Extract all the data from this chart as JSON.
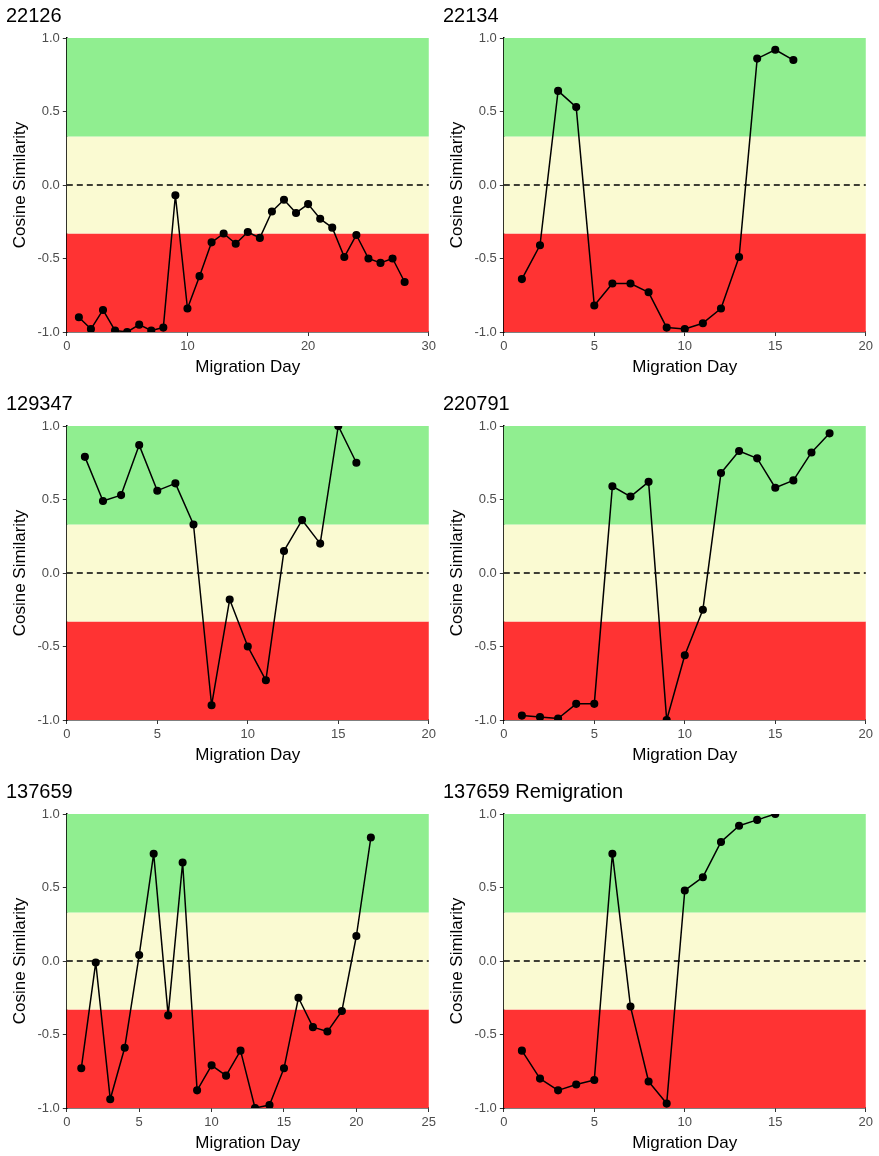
{
  "chart_data": [
    {
      "type": "line",
      "title": "22126",
      "xlabel": "Migration Day",
      "ylabel": "Cosine Similarity",
      "xlim": [
        0,
        30
      ],
      "xticks": [
        0,
        10,
        20,
        30
      ],
      "ylim": [
        -1,
        1
      ],
      "yticks": [
        {
          "value": -1,
          "label": "-1.0"
        },
        {
          "value": -0.5,
          "label": "-0.5"
        },
        {
          "value": 0,
          "label": "0.0"
        },
        {
          "value": 0.5,
          "label": "0.5"
        },
        {
          "value": 1,
          "label": "1.0"
        }
      ],
      "grid": false,
      "legend": false,
      "marker": "circle",
      "line_style": "solid",
      "x": [
        1,
        2,
        3,
        4,
        5,
        6,
        7,
        8,
        9,
        10,
        11,
        12,
        13,
        14,
        15,
        16,
        17,
        18,
        19,
        20,
        21,
        22,
        23,
        24,
        25,
        26,
        27,
        28
      ],
      "series": [
        {
          "color": "#000000",
          "values": [
            -0.9,
            -0.98,
            -0.85,
            -0.99,
            -1.0,
            -0.95,
            -0.99,
            -0.97,
            -0.07,
            -0.84,
            -0.62,
            -0.39,
            -0.33,
            -0.4,
            -0.32,
            -0.36,
            -0.18,
            -0.1,
            -0.19,
            -0.13,
            -0.23,
            -0.29,
            -0.49,
            -0.34,
            -0.5,
            -0.53,
            -0.5,
            -0.66
          ]
        }
      ],
      "bands": [
        {
          "axis": "y",
          "from": -1,
          "to": -0.33,
          "color": "#ff3333"
        },
        {
          "axis": "y",
          "from": -0.33,
          "to": 0.33,
          "color": "#fafad2"
        },
        {
          "axis": "y",
          "from": 0.33,
          "to": 1,
          "color": "#90ee90"
        }
      ],
      "ref_lines": [
        {
          "axis": "y",
          "value": 0,
          "color": "#000000",
          "line_style": "dashed"
        }
      ]
    },
    {
      "type": "line",
      "title": "22134",
      "xlabel": "Migration Day",
      "ylabel": "Cosine Similarity",
      "xlim": [
        0,
        20
      ],
      "xticks": [
        0,
        5,
        10,
        15,
        20
      ],
      "ylim": [
        -1,
        1
      ],
      "yticks": [
        {
          "value": -1,
          "label": "-1.0"
        },
        {
          "value": -0.5,
          "label": "-0.5"
        },
        {
          "value": 0,
          "label": "0.0"
        },
        {
          "value": 0.5,
          "label": "0.5"
        },
        {
          "value": 1,
          "label": "1.0"
        }
      ],
      "grid": false,
      "legend": false,
      "marker": "circle",
      "line_style": "solid",
      "x": [
        1,
        2,
        3,
        4,
        5,
        6,
        7,
        8,
        9,
        10,
        11,
        12,
        13,
        14,
        15,
        16
      ],
      "series": [
        {
          "color": "#000000",
          "values": [
            -0.64,
            -0.41,
            0.64,
            0.53,
            -0.82,
            -0.67,
            -0.67,
            -0.73,
            -0.97,
            -0.98,
            -0.94,
            -0.84,
            -0.49,
            0.86,
            0.92,
            0.85
          ]
        }
      ],
      "bands": [
        {
          "axis": "y",
          "from": -1,
          "to": -0.33,
          "color": "#ff3333"
        },
        {
          "axis": "y",
          "from": -0.33,
          "to": 0.33,
          "color": "#fafad2"
        },
        {
          "axis": "y",
          "from": 0.33,
          "to": 1,
          "color": "#90ee90"
        }
      ],
      "ref_lines": [
        {
          "axis": "y",
          "value": 0,
          "color": "#000000",
          "line_style": "dashed"
        }
      ]
    },
    {
      "type": "line",
      "title": "129347",
      "xlabel": "Migration Day",
      "ylabel": "Cosine Similarity",
      "xlim": [
        0,
        20
      ],
      "xticks": [
        0,
        5,
        10,
        15,
        20
      ],
      "ylim": [
        -1,
        1
      ],
      "yticks": [
        {
          "value": -1,
          "label": "-1.0"
        },
        {
          "value": -0.5,
          "label": "-0.5"
        },
        {
          "value": 0,
          "label": "0.0"
        },
        {
          "value": 0.5,
          "label": "0.5"
        },
        {
          "value": 1,
          "label": "1.0"
        }
      ],
      "grid": false,
      "legend": false,
      "marker": "circle",
      "line_style": "solid",
      "x": [
        1,
        2,
        3,
        4,
        5,
        6,
        7,
        8,
        9,
        10,
        11,
        12,
        13,
        14,
        15,
        16
      ],
      "series": [
        {
          "color": "#000000",
          "values": [
            0.79,
            0.49,
            0.53,
            0.87,
            0.56,
            0.61,
            0.33,
            -0.9,
            -0.18,
            -0.5,
            -0.73,
            0.15,
            0.36,
            0.2,
            1.0,
            0.75
          ]
        }
      ],
      "bands": [
        {
          "axis": "y",
          "from": -1,
          "to": -0.33,
          "color": "#ff3333"
        },
        {
          "axis": "y",
          "from": -0.33,
          "to": 0.33,
          "color": "#fafad2"
        },
        {
          "axis": "y",
          "from": 0.33,
          "to": 1,
          "color": "#90ee90"
        }
      ],
      "ref_lines": [
        {
          "axis": "y",
          "value": 0,
          "color": "#000000",
          "line_style": "dashed"
        }
      ]
    },
    {
      "type": "line",
      "title": "220791",
      "xlabel": "Migration Day",
      "ylabel": "Cosine Similarity",
      "xlim": [
        0,
        20
      ],
      "xticks": [
        0,
        5,
        10,
        15,
        20
      ],
      "ylim": [
        -1,
        1
      ],
      "yticks": [
        {
          "value": -1,
          "label": "-1.0"
        },
        {
          "value": -0.5,
          "label": "-0.5"
        },
        {
          "value": 0,
          "label": "0.0"
        },
        {
          "value": 0.5,
          "label": "0.5"
        },
        {
          "value": 1,
          "label": "1.0"
        }
      ],
      "grid": false,
      "legend": false,
      "marker": "circle",
      "line_style": "solid",
      "x": [
        1,
        2,
        3,
        4,
        5,
        6,
        7,
        8,
        9,
        10,
        11,
        12,
        13,
        14,
        15,
        16,
        17,
        18
      ],
      "series": [
        {
          "color": "#000000",
          "values": [
            -0.97,
            -0.98,
            -0.99,
            -0.89,
            -0.89,
            0.59,
            0.52,
            0.62,
            -1.0,
            -0.56,
            -0.25,
            0.68,
            0.83,
            0.78,
            0.58,
            0.63,
            0.82,
            0.95
          ]
        }
      ],
      "bands": [
        {
          "axis": "y",
          "from": -1,
          "to": -0.33,
          "color": "#ff3333"
        },
        {
          "axis": "y",
          "from": -0.33,
          "to": 0.33,
          "color": "#fafad2"
        },
        {
          "axis": "y",
          "from": 0.33,
          "to": 1,
          "color": "#90ee90"
        }
      ],
      "ref_lines": [
        {
          "axis": "y",
          "value": 0,
          "color": "#000000",
          "line_style": "dashed"
        }
      ]
    },
    {
      "type": "line",
      "title": "137659",
      "xlabel": "Migration Day",
      "ylabel": "Cosine Similarity",
      "xlim": [
        0,
        25
      ],
      "xticks": [
        0,
        5,
        10,
        15,
        20,
        25
      ],
      "ylim": [
        -1,
        1
      ],
      "yticks": [
        {
          "value": -1,
          "label": "-1.0"
        },
        {
          "value": -0.5,
          "label": "-0.5"
        },
        {
          "value": 0,
          "label": "0.0"
        },
        {
          "value": 0.5,
          "label": "0.5"
        },
        {
          "value": 1,
          "label": "1.0"
        }
      ],
      "grid": false,
      "legend": false,
      "marker": "circle",
      "line_style": "solid",
      "x": [
        1,
        2,
        3,
        4,
        5,
        6,
        7,
        8,
        9,
        10,
        11,
        12,
        13,
        14,
        15,
        16,
        17,
        18,
        19,
        20,
        21
      ],
      "series": [
        {
          "color": "#000000",
          "values": [
            -0.73,
            -0.01,
            -0.94,
            -0.59,
            0.04,
            0.73,
            -0.37,
            0.67,
            -0.88,
            -0.71,
            -0.78,
            -0.61,
            -1.0,
            -0.98,
            -0.73,
            -0.25,
            -0.45,
            -0.48,
            -0.34,
            0.17,
            0.84
          ]
        }
      ],
      "bands": [
        {
          "axis": "y",
          "from": -1,
          "to": -0.33,
          "color": "#ff3333"
        },
        {
          "axis": "y",
          "from": -0.33,
          "to": 0.33,
          "color": "#fafad2"
        },
        {
          "axis": "y",
          "from": 0.33,
          "to": 1,
          "color": "#90ee90"
        }
      ],
      "ref_lines": [
        {
          "axis": "y",
          "value": 0,
          "color": "#000000",
          "line_style": "dashed"
        }
      ]
    },
    {
      "type": "line",
      "title": "137659 Remigration",
      "xlabel": "Migration Day",
      "ylabel": "Cosine Similarity",
      "xlim": [
        0,
        20
      ],
      "xticks": [
        0,
        5,
        10,
        15,
        20
      ],
      "ylim": [
        -1,
        1
      ],
      "yticks": [
        {
          "value": -1,
          "label": "-1.0"
        },
        {
          "value": -0.5,
          "label": "-0.5"
        },
        {
          "value": 0,
          "label": "0.0"
        },
        {
          "value": 0.5,
          "label": "0.5"
        },
        {
          "value": 1,
          "label": "1.0"
        }
      ],
      "grid": false,
      "legend": false,
      "marker": "circle",
      "line_style": "solid",
      "x": [
        1,
        2,
        3,
        4,
        5,
        6,
        7,
        8,
        9,
        10,
        11,
        12,
        13,
        14,
        15
      ],
      "series": [
        {
          "color": "#000000",
          "values": [
            -0.61,
            -0.8,
            -0.88,
            -0.84,
            -0.81,
            0.73,
            -0.31,
            -0.82,
            -0.97,
            0.48,
            0.57,
            0.81,
            0.92,
            0.96,
            1.0
          ]
        }
      ],
      "bands": [
        {
          "axis": "y",
          "from": -1,
          "to": -0.33,
          "color": "#ff3333"
        },
        {
          "axis": "y",
          "from": -0.33,
          "to": 0.33,
          "color": "#fafad2"
        },
        {
          "axis": "y",
          "from": 0.33,
          "to": 1,
          "color": "#90ee90"
        }
      ],
      "ref_lines": [
        {
          "axis": "y",
          "value": 0,
          "color": "#000000",
          "line_style": "dashed"
        }
      ]
    }
  ]
}
